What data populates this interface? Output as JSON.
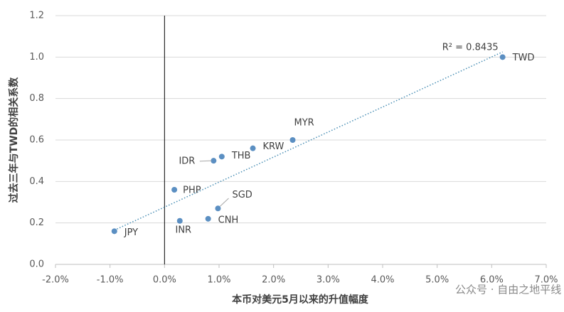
{
  "chart_data": {
    "type": "scatter",
    "x_label": "本币对美元5月以来的升值幅度",
    "y_label": "过去三年与TWD的相关系数",
    "series": [
      {
        "color": "#5b8fc2",
        "labels": [
          "JPY",
          "PHP",
          "INR",
          "CNH",
          "SGD",
          "IDR",
          "THB",
          "KRW",
          "MYR",
          "TWD"
        ],
        "x": [
          -0.92,
          0.18,
          0.28,
          0.8,
          0.98,
          0.9,
          1.05,
          1.62,
          2.35,
          6.2
        ],
        "values": [
          0.16,
          0.36,
          0.21,
          0.22,
          0.27,
          0.5,
          0.52,
          0.56,
          0.6,
          1.0
        ]
      }
    ],
    "trendline": {
      "x": [
        -0.92,
        6.2
      ],
      "y": [
        0.165,
        1.025
      ],
      "label": "R² = 0.8435",
      "color": "#4a8fb5"
    },
    "xlim": [
      -2,
      7
    ],
    "xticks": [
      {
        "value": -2,
        "label": "-2.0%"
      },
      {
        "value": -1,
        "label": "-1.0%"
      },
      {
        "value": 0,
        "label": "0.0%"
      },
      {
        "value": 1,
        "label": "1.0%"
      },
      {
        "value": 2,
        "label": "2.0%"
      },
      {
        "value": 3,
        "label": "3.0%"
      },
      {
        "value": 4,
        "label": "4.0%"
      },
      {
        "value": 5,
        "label": "5.0%"
      },
      {
        "value": 6,
        "label": "6.0%"
      },
      {
        "value": 7,
        "label": "7.0%"
      }
    ],
    "ylim": [
      0,
      1.2
    ],
    "yticks": [
      {
        "value": 0,
        "label": "0.0"
      },
      0.2,
      0.4,
      0.6,
      0.8,
      {
        "value": 1,
        "label": "1.0"
      },
      1.2
    ],
    "grid": true,
    "watermark": "公众号 · 自由之地平线"
  }
}
